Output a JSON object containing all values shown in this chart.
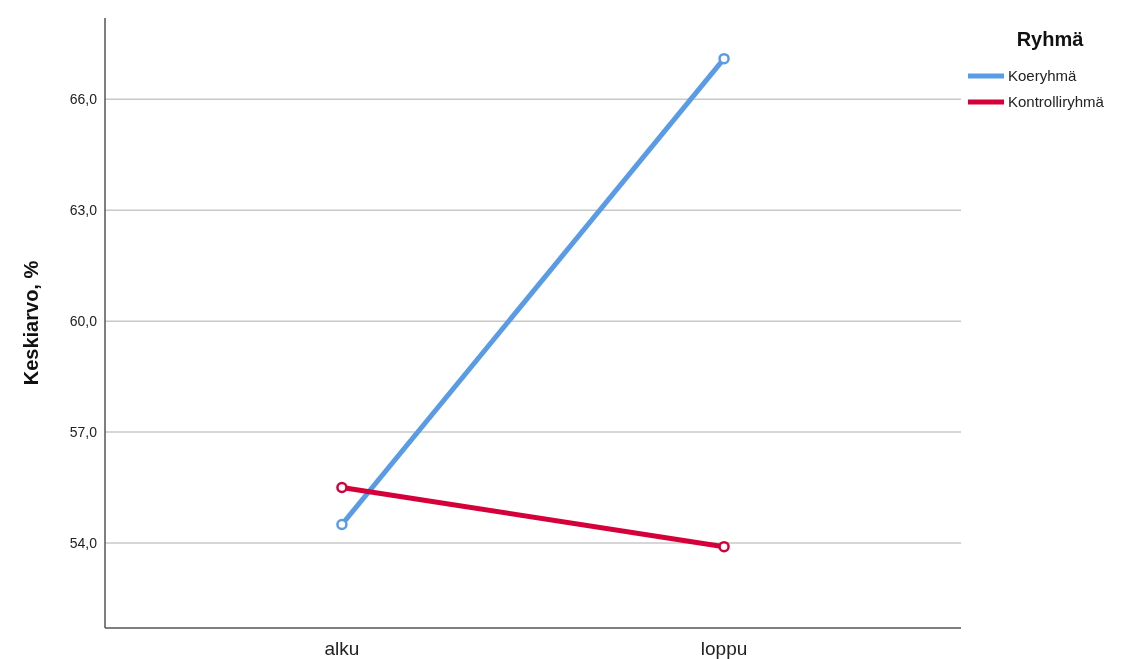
{
  "chart_data": {
    "type": "line",
    "ylabel": "Keskiarvo, %",
    "legend_title": "Ryhmä",
    "categories": [
      "alku",
      "loppu"
    ],
    "series": [
      {
        "name": "Koeryhmä",
        "color": "#5a9be6",
        "values": [
          54.5,
          67.1
        ]
      },
      {
        "name": "Kontrolliryhmä",
        "color": "#d5003a",
        "values": [
          55.5,
          53.9
        ]
      }
    ],
    "ylim": [
      51.7,
      68.2
    ],
    "yticks": [
      {
        "value": 54,
        "label": "54,0"
      },
      {
        "value": 57,
        "label": "57,0"
      },
      {
        "value": 60,
        "label": "60,0"
      },
      {
        "value": 63,
        "label": "63,0"
      },
      {
        "value": 66,
        "label": "66,0"
      }
    ],
    "grid": "y",
    "legend": "top right",
    "marker": "circle",
    "line_style": "solid"
  }
}
